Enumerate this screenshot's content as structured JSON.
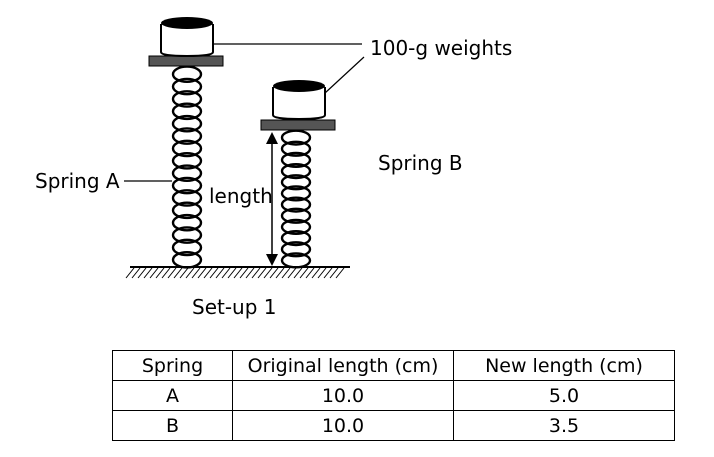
{
  "labels": {
    "weights": "100-g weights",
    "spring_a": "Spring A",
    "spring_b": "Spring B",
    "length": "length",
    "setup": "Set-up 1"
  },
  "table": {
    "headers": [
      "Spring",
      "Original length (cm)",
      "New length (cm)"
    ],
    "rows": [
      [
        "A",
        "10.0",
        "5.0"
      ],
      [
        "B",
        "10.0",
        "3.5"
      ]
    ]
  },
  "colors": {
    "plate": "#555555",
    "weight_top": "#000000",
    "line": "#000000"
  }
}
